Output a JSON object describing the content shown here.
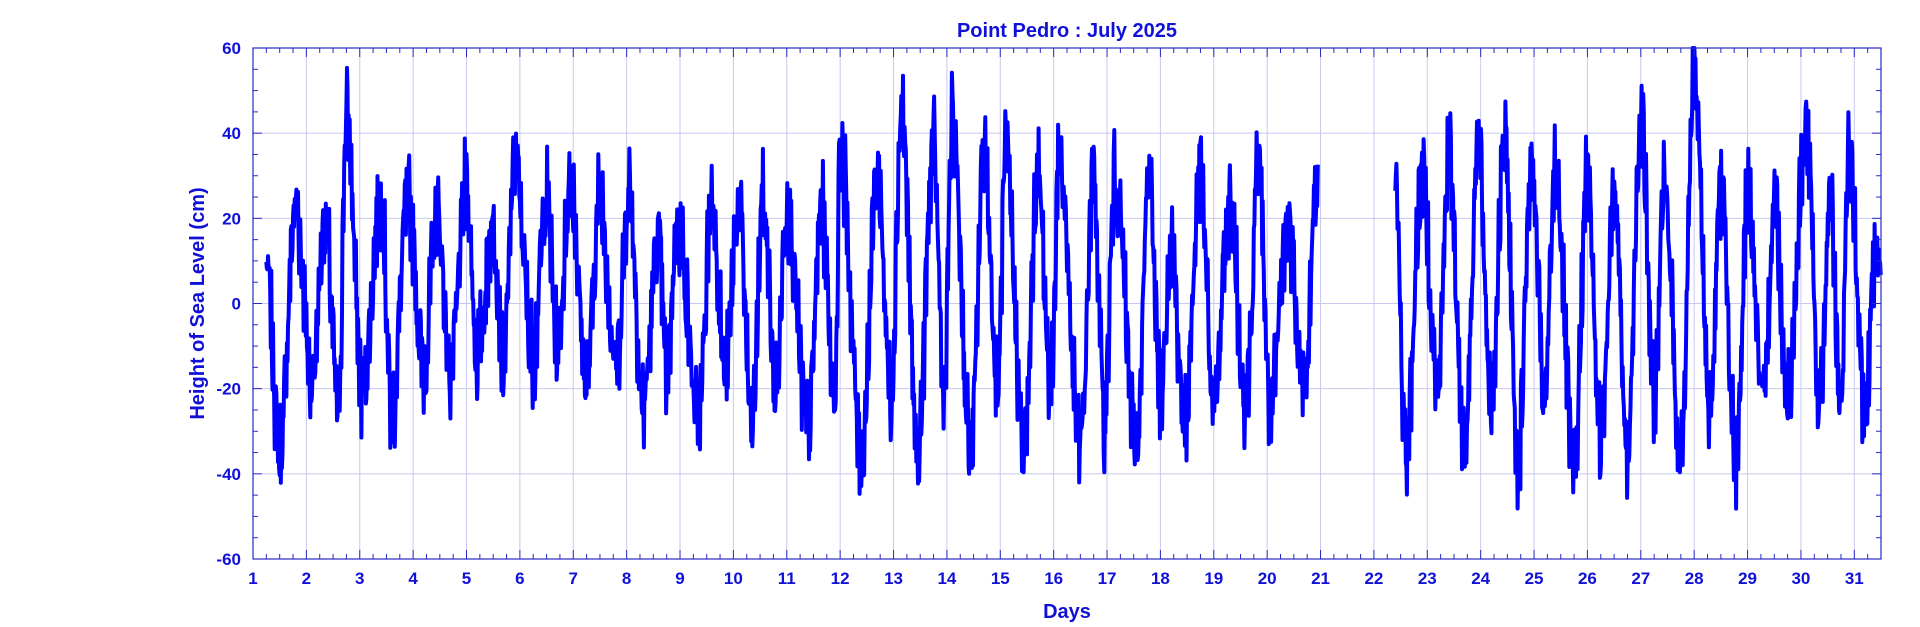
{
  "chart_data": {
    "type": "line",
    "title": "Point Pedro : July 2025",
    "xlabel": "Days",
    "ylabel": "Height of Sea Level (cm)",
    "xlim": [
      1,
      31.5
    ],
    "ylim": [
      -60,
      60
    ],
    "xticks": [
      "1",
      "2",
      "3",
      "4",
      "5",
      "6",
      "7",
      "8",
      "9",
      "10",
      "11",
      "12",
      "13",
      "14",
      "15",
      "16",
      "17",
      "18",
      "19",
      "20",
      "21",
      "22",
      "23",
      "24",
      "25",
      "26",
      "27",
      "28",
      "29",
      "30",
      "31"
    ],
    "yticks": [
      "60",
      "40",
      "20",
      "0",
      "-20",
      "-40",
      "-60"
    ],
    "grid": true,
    "colors": {
      "line": "#0000ff",
      "text": "#1010d8",
      "grid": "#c8c8f0"
    },
    "series": [
      {
        "segments": [
          {
            "x_start": 1.25,
            "x_end": 20.95
          },
          {
            "x_start": 22.4,
            "x_end": 31.5
          }
        ],
        "daily_peaks": [
          [
            1.25,
            8
          ],
          [
            1.5,
            -35
          ],
          [
            1.8,
            23
          ],
          [
            2.1,
            -18
          ],
          [
            2.35,
            19
          ],
          [
            2.6,
            -24
          ],
          [
            2.75,
            44
          ],
          [
            3.05,
            -20
          ],
          [
            3.4,
            25
          ],
          [
            3.6,
            -26
          ],
          [
            3.9,
            25
          ],
          [
            4.2,
            -15
          ],
          [
            4.45,
            21
          ],
          [
            4.7,
            -16
          ],
          [
            5.0,
            27
          ],
          [
            5.2,
            -12
          ],
          [
            5.5,
            18
          ],
          [
            5.7,
            -13
          ],
          [
            5.9,
            33
          ],
          [
            6.25,
            -12
          ],
          [
            6.5,
            25
          ],
          [
            6.7,
            -10
          ],
          [
            6.95,
            29
          ],
          [
            7.25,
            -18
          ],
          [
            7.5,
            25
          ],
          [
            7.8,
            -14
          ],
          [
            8.05,
            27
          ],
          [
            8.3,
            -24
          ],
          [
            8.6,
            14
          ],
          [
            8.75,
            -17
          ],
          [
            8.95,
            19
          ],
          [
            9.35,
            -27
          ],
          [
            9.6,
            25
          ],
          [
            9.85,
            -16
          ],
          [
            10.1,
            24
          ],
          [
            10.35,
            -29
          ],
          [
            10.55,
            24
          ],
          [
            10.8,
            -20
          ],
          [
            11.0,
            23
          ],
          [
            11.4,
            -30
          ],
          [
            11.65,
            22
          ],
          [
            11.9,
            -22
          ],
          [
            12.0,
            36
          ],
          [
            12.4,
            -35
          ],
          [
            12.7,
            31
          ],
          [
            12.95,
            -21
          ],
          [
            13.15,
            45
          ],
          [
            13.45,
            -35
          ],
          [
            13.75,
            36
          ],
          [
            13.95,
            -21
          ],
          [
            14.1,
            42
          ],
          [
            14.45,
            -35
          ],
          [
            14.7,
            37
          ],
          [
            14.95,
            -21
          ],
          [
            15.1,
            34
          ],
          [
            15.45,
            -35
          ],
          [
            15.7,
            30
          ],
          [
            15.95,
            -19
          ],
          [
            16.1,
            35
          ],
          [
            16.5,
            -34
          ],
          [
            16.75,
            29
          ],
          [
            16.95,
            -27
          ],
          [
            17.15,
            29
          ],
          [
            17.55,
            -33
          ],
          [
            17.8,
            31
          ],
          [
            18.0,
            -21
          ],
          [
            18.2,
            15
          ],
          [
            18.45,
            -28
          ],
          [
            18.75,
            29
          ],
          [
            19.0,
            -24
          ],
          [
            19.3,
            22
          ],
          [
            19.6,
            -22
          ],
          [
            19.85,
            33
          ],
          [
            20.05,
            -26
          ],
          [
            20.4,
            18
          ],
          [
            20.7,
            -20
          ],
          [
            20.95,
            32
          ],
          [
            22.4,
            26
          ],
          [
            22.6,
            -35
          ],
          [
            22.9,
            30
          ],
          [
            23.2,
            -20
          ],
          [
            23.4,
            36
          ],
          [
            23.7,
            -33
          ],
          [
            23.95,
            36
          ],
          [
            24.2,
            -21
          ],
          [
            24.45,
            38
          ],
          [
            24.7,
            -37
          ],
          [
            24.95,
            32
          ],
          [
            25.2,
            -23
          ],
          [
            25.4,
            32
          ],
          [
            25.75,
            -41
          ],
          [
            26.0,
            30
          ],
          [
            26.25,
            -31
          ],
          [
            26.5,
            28
          ],
          [
            26.75,
            -36
          ],
          [
            27.0,
            45
          ],
          [
            27.25,
            -21
          ],
          [
            27.45,
            27
          ],
          [
            27.75,
            -36
          ],
          [
            28.0,
            54
          ],
          [
            28.3,
            -25
          ],
          [
            28.5,
            27
          ],
          [
            28.8,
            -38
          ],
          [
            29.0,
            27
          ],
          [
            29.3,
            -25
          ],
          [
            29.5,
            25
          ],
          [
            29.75,
            -21
          ],
          [
            30.1,
            41
          ],
          [
            30.35,
            -24
          ],
          [
            30.55,
            25
          ],
          [
            30.75,
            -27
          ],
          [
            30.9,
            37
          ],
          [
            31.2,
            -28
          ],
          [
            31.4,
            14
          ]
        ]
      }
    ]
  }
}
